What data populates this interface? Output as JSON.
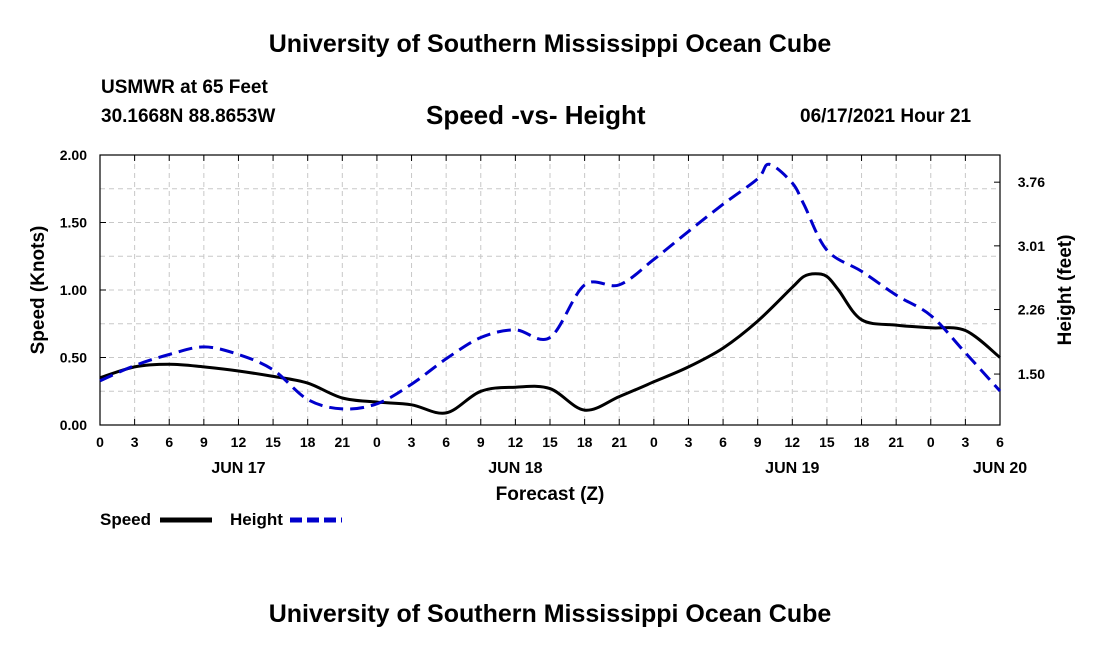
{
  "header": {
    "title": "University of Southern Mississippi Ocean Cube",
    "station": "USMWR at 65 Feet",
    "coords": "30.1668N  88.8653W",
    "chart_title": "Speed -vs- Height",
    "timestamp": "06/17/2021 Hour 21"
  },
  "footer": {
    "title": "University of Southern Mississippi Ocean Cube"
  },
  "chart_data": {
    "type": "line",
    "title": "Speed -vs- Height",
    "xlabel": "Forecast (Z)",
    "ylabel": "Speed (Knots)",
    "y2label": "Height (feet)",
    "ylim": [
      0,
      2.0
    ],
    "y2lim": [
      0.9,
      4.08
    ],
    "x_range_hours": [
      0,
      78
    ],
    "yticks": [
      "0.00",
      "0.50",
      "1.00",
      "1.50",
      "2.00"
    ],
    "y2ticks": [
      "1.50",
      "2.26",
      "3.01",
      "3.76"
    ],
    "xtick_labels": [
      "0",
      "3",
      "6",
      "9",
      "12",
      "15",
      "18",
      "21",
      "0",
      "3",
      "6",
      "9",
      "12",
      "15",
      "18",
      "21",
      "0",
      "3",
      "6",
      "9",
      "12",
      "15",
      "18",
      "21",
      "0",
      "3",
      "6"
    ],
    "date_labels": [
      {
        "label": "JUN 17",
        "hour": 12
      },
      {
        "label": "JUN 18",
        "hour": 36
      },
      {
        "label": "JUN 19",
        "hour": 60
      },
      {
        "label": "JUN 20",
        "hour": 78
      }
    ],
    "grid": true,
    "legend": "bottom-left",
    "series": [
      {
        "name": "Speed",
        "axis": "left",
        "color": "#000000",
        "style": "solid",
        "x": [
          0,
          3,
          6,
          9,
          12,
          15,
          18,
          21,
          24,
          27,
          30,
          33,
          36,
          39,
          42,
          45,
          48,
          51,
          54,
          57,
          60,
          61,
          62,
          63,
          64,
          66,
          69,
          72,
          75,
          78
        ],
        "y": [
          0.35,
          0.43,
          0.45,
          0.43,
          0.4,
          0.36,
          0.31,
          0.2,
          0.17,
          0.15,
          0.09,
          0.25,
          0.28,
          0.27,
          0.11,
          0.21,
          0.32,
          0.43,
          0.57,
          0.77,
          1.02,
          1.1,
          1.12,
          1.1,
          1.0,
          0.78,
          0.74,
          0.72,
          0.7,
          0.5
        ]
      },
      {
        "name": "Height",
        "axis": "right",
        "color": "#0000cc",
        "style": "dashed",
        "x": [
          0,
          3,
          6,
          9,
          12,
          15,
          18,
          21,
          24,
          27,
          30,
          33,
          36,
          39,
          42,
          45,
          48,
          51,
          54,
          57,
          58,
          60,
          61,
          63,
          66,
          69,
          72,
          75,
          78
        ],
        "y": [
          1.42,
          1.6,
          1.73,
          1.82,
          1.73,
          1.55,
          1.2,
          1.09,
          1.15,
          1.38,
          1.68,
          1.93,
          2.02,
          1.93,
          2.55,
          2.55,
          2.85,
          3.18,
          3.5,
          3.8,
          3.97,
          3.75,
          3.5,
          2.96,
          2.71,
          2.43,
          2.19,
          1.75,
          1.3
        ]
      }
    ]
  }
}
